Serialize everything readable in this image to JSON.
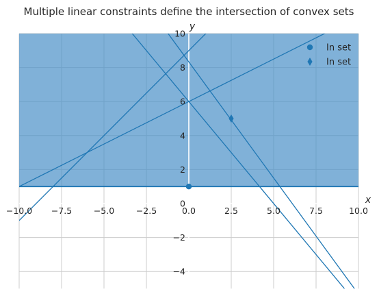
{
  "chart_data": {
    "type": "line",
    "title": "Multiple linear constraints define the intersection of convex sets",
    "xlabel": "x",
    "ylabel": "y",
    "xlim": [
      -10,
      10
    ],
    "ylim": [
      -5,
      10
    ],
    "x_ticks": [
      -10,
      -7.5,
      -5,
      -2.5,
      0,
      2.5,
      5,
      7.5,
      10
    ],
    "y_ticks": [
      -4,
      -2,
      0,
      2,
      4,
      6,
      8,
      10
    ],
    "x_tick_labels": [
      "−10.0",
      "−7.5",
      "−5.0",
      "−2.5",
      "0.0",
      "2.5",
      "5.0",
      "7.5",
      "10.0"
    ],
    "y_tick_labels": [
      "−4",
      "−2",
      "0",
      "2",
      "4",
      "6",
      "8",
      "10"
    ],
    "grid": true,
    "legend_position": "top-right",
    "shaded_region": {
      "y_min": 1,
      "y_max": 10,
      "color": "#4a90c8",
      "opacity": 0.7
    },
    "lines": [
      {
        "x": [
          -10,
          10
        ],
        "y": [
          1,
          1
        ]
      },
      {
        "x": [
          -10,
          10
        ],
        "y": [
          1,
          11
        ]
      },
      {
        "x": [
          -10,
          10
        ],
        "y": [
          -1,
          19
        ]
      },
      {
        "x": [
          -10,
          10
        ],
        "y": [
          22,
          -5.333
        ]
      },
      {
        "x": [
          -10,
          10
        ],
        "y": [
          18,
          -6
        ]
      }
    ],
    "line_color": "#1f77b4",
    "points": [
      {
        "label": "In set",
        "marker": "circle",
        "x": 0,
        "y": 1
      },
      {
        "label": "In set",
        "marker": "diamond",
        "x": 2.5,
        "y": 5
      }
    ],
    "point_color": "#1f77b4"
  }
}
